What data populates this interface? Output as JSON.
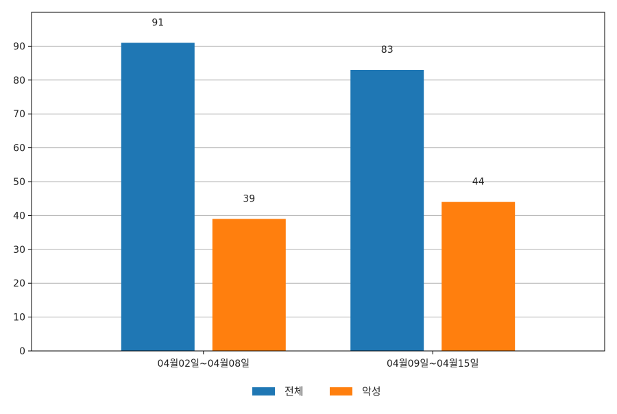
{
  "chart_data": {
    "type": "bar",
    "categories": [
      "04월02일~04월08일",
      "04월09일~04월15일"
    ],
    "series": [
      {
        "name": "전체",
        "values": [
          91,
          83
        ],
        "color": "#1f77b4"
      },
      {
        "name": "악성",
        "values": [
          39,
          44
        ],
        "color": "#ff7f0e"
      }
    ],
    "ylim": [
      0,
      100
    ],
    "yticks": [
      0,
      10,
      20,
      30,
      40,
      50,
      60,
      70,
      80,
      90
    ],
    "grid": true,
    "legend_position": "bottom-center",
    "data_labels": true
  }
}
